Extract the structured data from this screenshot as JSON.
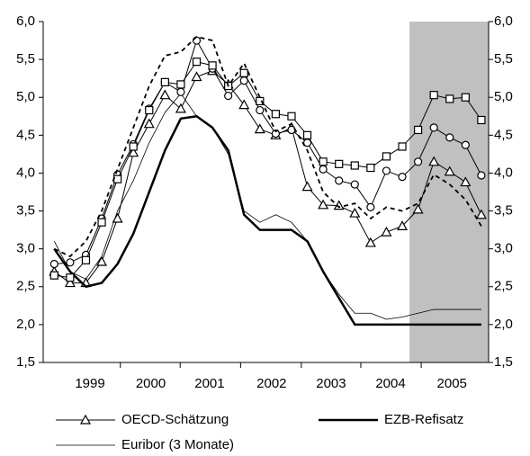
{
  "chart_data": {
    "type": "line",
    "x": [
      1998.875,
      1999.125,
      1999.375,
      1999.625,
      1999.875,
      2000.125,
      2000.375,
      2000.625,
      2000.875,
      2001.125,
      2001.375,
      2001.625,
      2001.875,
      2002.125,
      2002.375,
      2002.625,
      2002.875,
      2003.125,
      2003.375,
      2003.625,
      2003.875,
      2004.125,
      2004.375,
      2004.625,
      2004.875,
      2005.125,
      2005.375,
      2005.625
    ],
    "series": [
      {
        "name": "OECD-Schätzung",
        "color": "#000000",
        "marker": "triangle",
        "width": 1,
        "values": [
          2.7,
          2.55,
          2.55,
          2.83,
          3.4,
          4.27,
          4.65,
          5.03,
          4.85,
          5.27,
          5.35,
          5.17,
          4.9,
          4.58,
          4.5,
          4.6,
          3.82,
          3.58,
          3.57,
          3.47,
          3.08,
          3.22,
          3.3,
          3.52,
          4.15,
          4.02,
          3.88,
          3.45
        ]
      },
      {
        "name": "EZB-Refisatz",
        "color": "#000000",
        "width": 2.5,
        "values": [
          3.0,
          2.7,
          2.5,
          2.55,
          2.8,
          3.2,
          3.75,
          4.3,
          4.72,
          4.75,
          4.6,
          4.3,
          3.45,
          3.25,
          3.25,
          3.25,
          3.1,
          2.7,
          2.35,
          2.0,
          2.0,
          2.0,
          2.0,
          2.0,
          2.0,
          2.0,
          2.0,
          2.0
        ]
      },
      {
        "name": "Euribor (3 Monate)",
        "color": "#000000",
        "width": 0.8,
        "values": [
          3.1,
          2.7,
          2.6,
          2.9,
          3.5,
          3.9,
          4.4,
          4.8,
          5.05,
          4.75,
          4.6,
          4.25,
          3.5,
          3.35,
          3.45,
          3.35,
          3.1,
          2.7,
          2.4,
          2.15,
          2.15,
          2.07,
          2.1,
          2.15,
          2.2,
          2.2,
          2.2,
          2.2
        ]
      },
      {
        "color": "#000000",
        "marker": "circle",
        "width": 1,
        "values": [
          2.8,
          2.82,
          2.92,
          3.4,
          3.98,
          4.38,
          4.85,
          5.2,
          5.07,
          5.75,
          5.38,
          5.02,
          5.22,
          4.83,
          4.52,
          4.57,
          4.4,
          4.05,
          3.9,
          3.85,
          3.55,
          4.03,
          3.95,
          4.15,
          4.6,
          4.47,
          4.37,
          3.97
        ]
      },
      {
        "color": "#000000",
        "marker": "square",
        "width": 1,
        "values": [
          2.65,
          2.62,
          2.85,
          3.35,
          3.92,
          4.35,
          4.83,
          5.2,
          5.17,
          5.47,
          5.42,
          5.15,
          5.32,
          4.95,
          4.78,
          4.75,
          4.5,
          4.15,
          4.12,
          4.1,
          4.07,
          4.22,
          4.35,
          4.57,
          5.03,
          4.98,
          5.0,
          4.7
        ]
      },
      {
        "color": "#000000",
        "dash": true,
        "width": 1.8,
        "values": [
          3.0,
          2.9,
          3.1,
          3.5,
          4.05,
          4.6,
          5.15,
          5.55,
          5.6,
          5.8,
          5.75,
          5.15,
          5.45,
          5.0,
          4.55,
          4.65,
          4.3,
          3.75,
          3.55,
          3.6,
          3.4,
          3.55,
          3.5,
          3.6,
          3.98,
          3.85,
          3.65,
          3.3
        ]
      }
    ],
    "legend_series": [
      0,
      1,
      2
    ],
    "shaded_region": {
      "from": 2004.49,
      "color": "#c0c0c0"
    },
    "xlim": [
      1998.7,
      2005.74
    ],
    "xticks": [
      {
        "value": 1999.44,
        "label": "1999"
      },
      {
        "value": 2000.4,
        "label": "2000"
      },
      {
        "value": 2001.33,
        "label": "2001"
      },
      {
        "value": 2002.31,
        "label": "2002"
      },
      {
        "value": 2003.25,
        "label": "2003"
      },
      {
        "value": 2004.19,
        "label": "2004"
      },
      {
        "value": 2005.16,
        "label": "2005"
      }
    ],
    "ylim": [
      1.5,
      6.0
    ],
    "yticks": [
      {
        "value": 1.5,
        "label": "1,5"
      },
      {
        "value": 2.0,
        "label": "2,0"
      },
      {
        "value": 2.5,
        "label": "2,5"
      },
      {
        "value": 3.0,
        "label": "3,0"
      },
      {
        "value": 3.5,
        "label": "3,5"
      },
      {
        "value": 4.0,
        "label": "4,0"
      },
      {
        "value": 4.5,
        "label": "4,5"
      },
      {
        "value": 5.0,
        "label": "5,0"
      },
      {
        "value": 5.5,
        "label": "5,5"
      },
      {
        "value": 6.0,
        "label": "6,0"
      }
    ],
    "y2lim": [
      1.5,
      6.0
    ],
    "y2ticks": [
      {
        "value": 1.5,
        "label": "1,5"
      },
      {
        "value": 2.0,
        "label": "2,0"
      },
      {
        "value": 2.5,
        "label": "2,5"
      },
      {
        "value": 3.0,
        "label": "3,0"
      },
      {
        "value": 3.5,
        "label": "3,5"
      },
      {
        "value": 4.0,
        "label": "4,0"
      },
      {
        "value": 4.5,
        "label": "4,5"
      },
      {
        "value": 5.0,
        "label": "5,0"
      },
      {
        "value": 5.5,
        "label": "5,5"
      },
      {
        "value": 6.0,
        "label": "6,0"
      }
    ]
  }
}
